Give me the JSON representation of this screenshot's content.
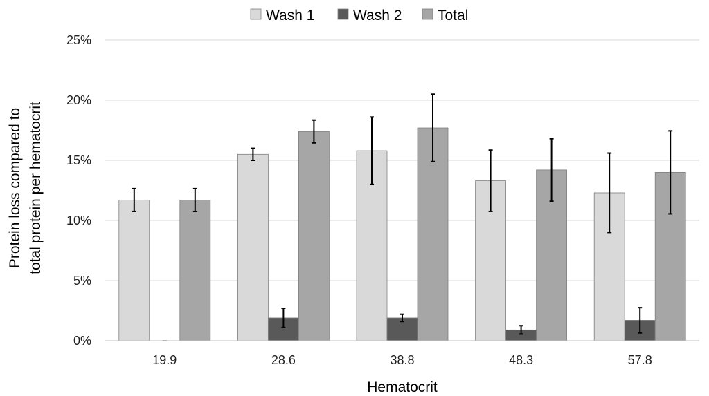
{
  "chart_data": {
    "type": "bar",
    "xlabel": "Hematocrit",
    "ylabel": [
      "Protein loss compared to",
      "total protein per hematocrit"
    ],
    "categories": [
      "19.9",
      "28.6",
      "38.8",
      "48.3",
      "57.8"
    ],
    "ylim": [
      0,
      25
    ],
    "yticks": [
      "0%",
      "5%",
      "10%",
      "15%",
      "20%",
      "25%"
    ],
    "grid": true,
    "legend": "top",
    "error_bars": true,
    "series": [
      {
        "name": "Wash 1",
        "color": "#d9d9d9",
        "values": [
          11.7,
          15.5,
          15.8,
          13.3,
          12.3
        ],
        "errors": [
          0.95,
          0.5,
          2.8,
          2.55,
          3.3
        ]
      },
      {
        "name": "Wash 2",
        "color": "#595959",
        "values": [
          0.0,
          1.9,
          1.9,
          0.9,
          1.7
        ],
        "errors": [
          0.05,
          0.8,
          0.3,
          0.35,
          1.05
        ]
      },
      {
        "name": "Total",
        "color": "#a6a6a6",
        "values": [
          11.7,
          17.4,
          17.7,
          14.2,
          14.0
        ],
        "errors": [
          0.95,
          0.95,
          2.8,
          2.6,
          3.45
        ]
      }
    ]
  }
}
